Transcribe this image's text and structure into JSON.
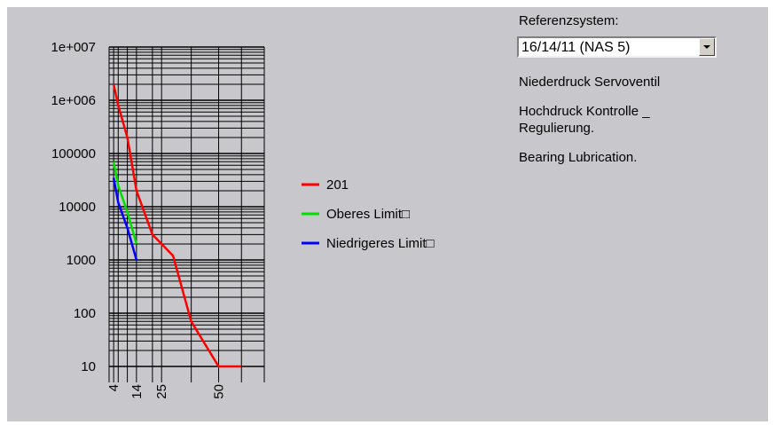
{
  "chart_data": {
    "type": "line",
    "y_scale": "log",
    "ylim": [
      10,
      10000000
    ],
    "y_tick_labels": [
      "1e+007",
      "1e+006",
      "100000",
      "10000",
      "1000",
      "100",
      "10"
    ],
    "y_tick_values": [
      10000000,
      1000000,
      100000,
      10000,
      1000,
      100,
      10
    ],
    "x_tick_labels": [
      "4",
      "14",
      "25",
      "50"
    ],
    "x_tick_values": [
      4,
      14,
      25,
      50
    ],
    "xlim": [
      2,
      70
    ],
    "series": [
      {
        "name": "201",
        "color": "#ff0000",
        "points": [
          [
            4,
            2000000
          ],
          [
            6,
            800000
          ],
          [
            10,
            200000
          ],
          [
            14,
            20000
          ],
          [
            21,
            3000
          ],
          [
            25,
            2000
          ],
          [
            30,
            1200
          ],
          [
            38,
            70
          ],
          [
            50,
            10
          ],
          [
            60,
            10
          ]
        ]
      },
      {
        "name": "Oberes Limit□",
        "color": "#00e000",
        "points": [
          [
            4,
            70000
          ],
          [
            6,
            25000
          ],
          [
            10,
            8000
          ],
          [
            14,
            2000
          ]
        ]
      },
      {
        "name": "Niedrigeres Limit□",
        "color": "#0000ff",
        "points": [
          [
            4,
            35000
          ],
          [
            6,
            12000
          ],
          [
            10,
            4000
          ],
          [
            14,
            1000
          ]
        ]
      }
    ],
    "legend": "right",
    "grid": true
  },
  "reference": {
    "label": "Referenzsystem:",
    "selected": "16/14/11 (NAS 5)"
  },
  "applications": [
    "Niederdruck Servoventil",
    "Hochdruck Kontrolle _\nRegulierung.",
    "Bearing Lubrication."
  ]
}
